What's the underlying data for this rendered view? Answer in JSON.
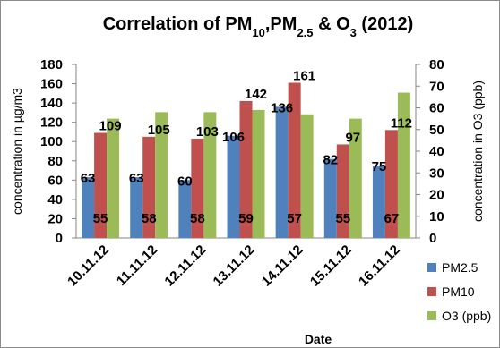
{
  "chart_data": {
    "type": "bar",
    "title_parts": [
      "Correlation of PM",
      "10",
      ",PM",
      "2.5",
      " & O",
      "3",
      " (2012)"
    ],
    "xlabel": "Date",
    "ylabel_left": "concentration in µg/m3",
    "ylabel_right": "concentration in O3 (ppb)",
    "ylim_left": [
      0,
      180
    ],
    "ylim_right": [
      0,
      80
    ],
    "yticks_left": [
      "0",
      "20",
      "40",
      "60",
      "80",
      "100",
      "120",
      "140",
      "160",
      "180"
    ],
    "yticks_right": [
      "0",
      "10",
      "20",
      "30",
      "40",
      "50",
      "60",
      "70",
      "80"
    ],
    "categories": [
      "10.11.12",
      "11.11.12",
      "12.11.12",
      "13.11.12",
      "14.11.12",
      "15.11.12",
      "16.11.12"
    ],
    "series": [
      {
        "name": "PM2.5",
        "axis": "left",
        "color": "#4f81bd",
        "values": [
          63,
          63,
          60,
          106,
          136,
          82,
          75
        ]
      },
      {
        "name": "PM10",
        "axis": "left",
        "color": "#c0504d",
        "values": [
          109,
          105,
          103,
          142,
          161,
          97,
          112
        ]
      },
      {
        "name": "O3 (ppb)",
        "axis": "right",
        "color": "#9bbb59",
        "values": [
          55,
          58,
          58,
          59,
          57,
          55,
          67
        ]
      }
    ],
    "grid": false,
    "legend": "right"
  }
}
